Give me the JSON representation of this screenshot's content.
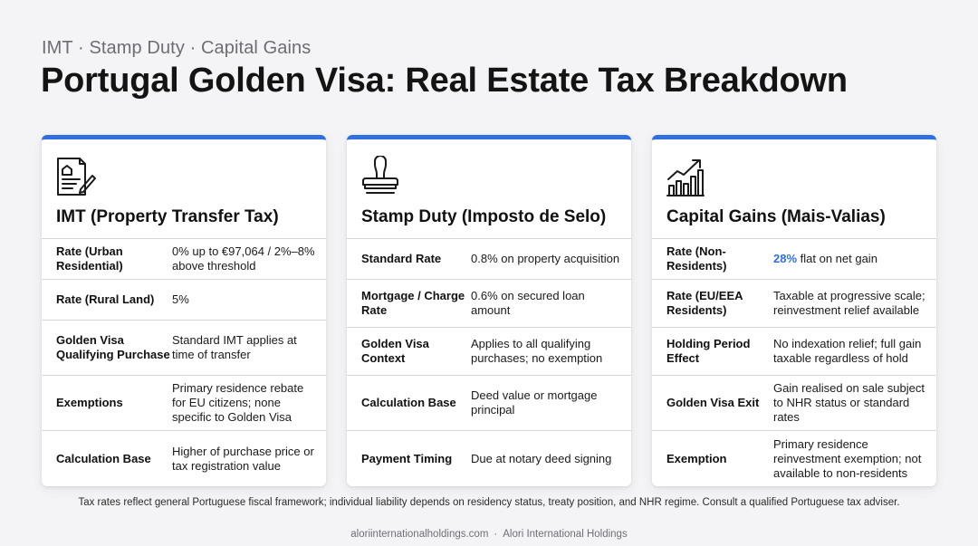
{
  "eyebrow": "IMT · Stamp Duty · Capital Gains",
  "title": "Portugal Golden Visa: Real Estate Tax Breakdown",
  "accent_color": "#2f6fe0",
  "cards": [
    {
      "icon": "document-pen-icon",
      "title": "IMT (Property Transfer Tax)",
      "rows": [
        {
          "label": "Rate (Urban Residential)",
          "value": "0% up to €97,064 / 2%–8% above threshold"
        },
        {
          "label": "Rate (Rural Land)",
          "value": "5%"
        },
        {
          "label": "Golden Visa Qualifying Purchase",
          "value": "Standard IMT applies at time of transfer"
        },
        {
          "label": "Exemptions",
          "value": "Primary residence rebate for EU citizens; none specific to Golden Visa"
        },
        {
          "label": "Calculation Base",
          "value": "Higher of purchase price or tax registration value"
        }
      ]
    },
    {
      "icon": "stamp-icon",
      "title": "Stamp Duty (Imposto de Selo)",
      "rows": [
        {
          "label": "Standard Rate",
          "value": "0.8% on property acquisition"
        },
        {
          "label": "Mortgage / Charge Rate",
          "value": "0.6% on secured loan amount"
        },
        {
          "label": "Golden Visa Context",
          "value": "Applies to all qualifying purchases; no exemption"
        },
        {
          "label": "Calculation Base",
          "value": "Deed value or mortgage principal"
        },
        {
          "label": "Payment Timing",
          "value": "Due at notary deed signing"
        }
      ]
    },
    {
      "icon": "growth-chart-icon",
      "title": "Capital Gains (Mais-Valias)",
      "rows": [
        {
          "label": "Rate (Non-Residents)",
          "value_highlight": "28%",
          "value_rest": " flat on net gain"
        },
        {
          "label": "Rate (EU/EEA Residents)",
          "value": "Taxable at progressive scale; reinvestment relief available"
        },
        {
          "label": "Holding Period Effect",
          "value": "No indexation relief; full gain taxable regardless of hold"
        },
        {
          "label": "Golden Visa Exit",
          "value": "Gain realised on sale subject to NHR status or standard rates"
        },
        {
          "label": "Exemption",
          "value": "Primary residence reinvestment exemption; not available to non-residents"
        }
      ]
    }
  ],
  "footnote": "Tax rates reflect general Portuguese fiscal framework; individual liability depends on residency status, treaty position, and NHR regime. Consult a qualified Portuguese tax adviser.",
  "footer": {
    "site": "aloriinternationalholdings.com",
    "separator": "·",
    "company": "Alori International Holdings"
  }
}
